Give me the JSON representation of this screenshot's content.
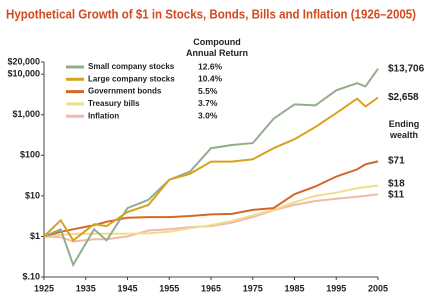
{
  "chart_data": {
    "type": "line",
    "title": "Hypothetical Growth of $1 in Stocks, Bonds, Bills and Inflation (1926–2005)",
    "legend_title": "Compound Annual Return",
    "end_title": "Ending wealth",
    "log_scale": true,
    "legend_position": "upper left",
    "x": [
      1925,
      1929,
      1932,
      1937,
      1940,
      1945,
      1950,
      1955,
      1960,
      1965,
      1970,
      1975,
      1980,
      1985,
      1990,
      1995,
      2000,
      2002,
      2005
    ],
    "xlim": [
      1925,
      2005
    ],
    "xticks": [
      1925,
      1935,
      1945,
      1955,
      1965,
      1975,
      1985,
      1995,
      2005
    ],
    "ylim": [
      0.1,
      20000
    ],
    "yticks": [
      {
        "value": 20000,
        "label": "$20,000"
      },
      {
        "value": 10000,
        "label": "$10,000"
      },
      {
        "value": 1000,
        "label": "$1,000"
      },
      {
        "value": 100,
        "label": "$100"
      },
      {
        "value": 10,
        "label": "$10"
      },
      {
        "value": 1,
        "label": "$1"
      },
      {
        "value": 0.1,
        "label": "$.10"
      }
    ],
    "series": [
      {
        "name": "Small company stocks",
        "color": "#93ad8c",
        "annual_return": "12.6%",
        "end_label": "$13,706",
        "values": [
          1,
          1.5,
          0.2,
          1.5,
          0.8,
          5,
          8,
          25,
          40,
          150,
          180,
          200,
          800,
          1800,
          1700,
          4000,
          6000,
          5000,
          13706
        ]
      },
      {
        "name": "Large company stocks",
        "color": "#d8a31c",
        "annual_return": "10.4%",
        "end_label": "$2,658",
        "values": [
          1,
          2.5,
          0.8,
          2,
          1.8,
          4,
          6,
          25,
          35,
          70,
          70,
          80,
          150,
          250,
          500,
          1100,
          2500,
          1600,
          2658
        ]
      },
      {
        "name": "Government bonds",
        "color": "#d5662a",
        "annual_return": "5.5%",
        "end_label": "$71",
        "values": [
          1,
          1.3,
          1.5,
          1.9,
          2.3,
          2.9,
          3,
          3,
          3.2,
          3.5,
          3.6,
          4.5,
          5,
          11,
          17,
          30,
          45,
          60,
          71
        ]
      },
      {
        "name": "Treasury bills",
        "color": "#efdc8e",
        "annual_return": "3.7%",
        "end_label": "$18",
        "values": [
          1,
          1.1,
          1.15,
          1.16,
          1.16,
          1.16,
          1.2,
          1.3,
          1.6,
          1.9,
          2.4,
          3.3,
          4.5,
          7,
          10,
          12,
          15.5,
          16.5,
          18
        ]
      },
      {
        "name": "Inflation",
        "color": "#f2b9a9",
        "annual_return": "3.0%",
        "end_label": "$11",
        "values": [
          1,
          0.95,
          0.75,
          0.85,
          0.85,
          1.0,
          1.4,
          1.5,
          1.7,
          1.8,
          2.2,
          3,
          4.4,
          6,
          7.5,
          8.5,
          9.5,
          10,
          11
        ]
      }
    ]
  }
}
